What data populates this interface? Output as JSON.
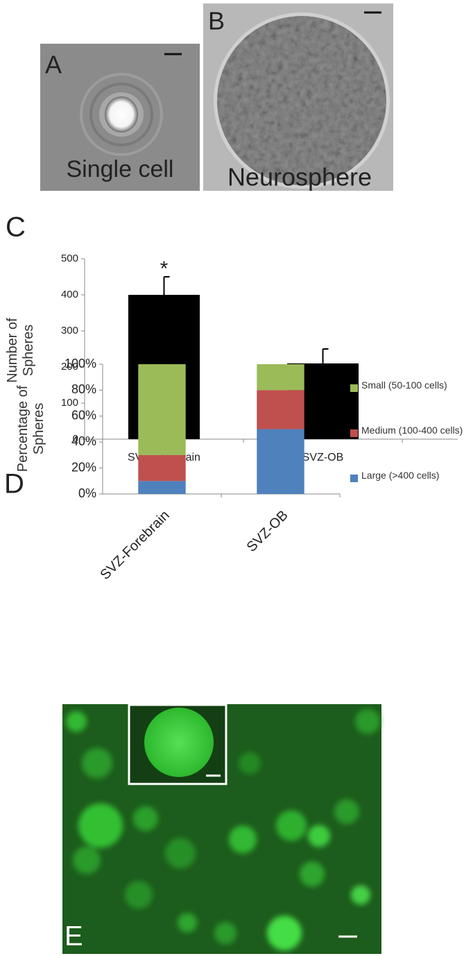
{
  "panels": {
    "a": {
      "label": "A",
      "caption": "Single cell"
    },
    "b": {
      "label": "B",
      "caption": "Neurosphere"
    },
    "c": {
      "label": "C"
    },
    "d": {
      "label": "D"
    },
    "e": {
      "label": "E"
    }
  },
  "chart_data": [
    {
      "type": "bar",
      "y_label": "Number of Spheres",
      "categories": [
        "SVZ-Forebrain",
        "SVZ-OB"
      ],
      "values": [
        400,
        210
      ],
      "errors": [
        50,
        40
      ],
      "color": "#000000",
      "ylim": [
        0,
        500
      ],
      "yticks": [
        0,
        100,
        200,
        300,
        400,
        500
      ],
      "annotations": [
        {
          "text": "*",
          "category": "SVZ-Forebrain"
        }
      ]
    },
    {
      "type": "stacked_bar",
      "y_label": "Percentage of Spheres",
      "categories": [
        "SVZ-Forebrain",
        "SVZ-OB"
      ],
      "series": [
        {
          "name": "Large (>400 cells)",
          "color": "#4f81bd",
          "values": [
            10,
            50
          ]
        },
        {
          "name": "Medium (100-400 cells)",
          "color": "#c0504d",
          "values": [
            20,
            30
          ]
        },
        {
          "name": "Small (50-100 cells)",
          "color": "#9bbb59",
          "values": [
            70,
            20
          ]
        }
      ],
      "ylim": [
        0,
        100
      ],
      "yticks": [
        {
          "value": 0,
          "label": "0%"
        },
        {
          "value": 20,
          "label": "20%"
        },
        {
          "value": 40,
          "label": "40%"
        },
        {
          "value": 60,
          "label": "60%"
        },
        {
          "value": 80,
          "label": "80%"
        },
        {
          "value": 100,
          "label": "100%"
        }
      ],
      "legend": "right"
    }
  ]
}
